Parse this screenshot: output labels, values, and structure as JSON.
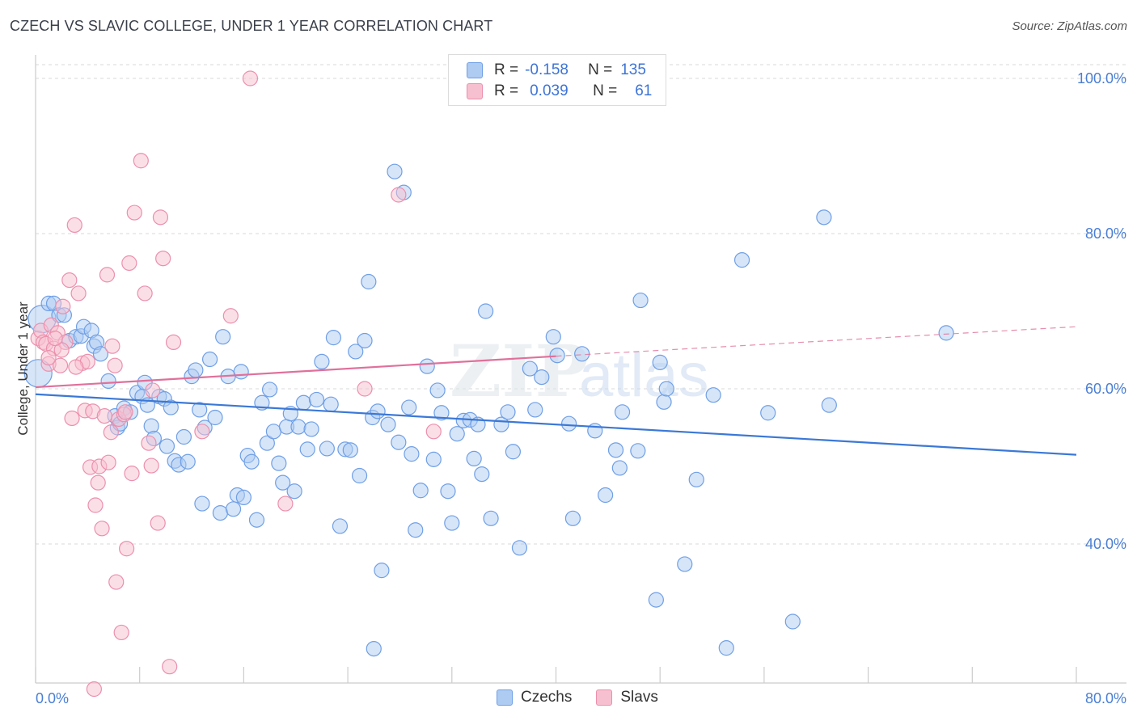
{
  "title": "CZECH VS SLAVIC COLLEGE, UNDER 1 YEAR CORRELATION CHART",
  "source": "Source: ZipAtlas.com",
  "watermark": "ZIPatlas",
  "legend_top": {
    "rows": [
      {
        "r_label": "R =",
        "r_value": "-0.158",
        "n_label": "N =",
        "n_value": "135",
        "color_fill": "#aecbf2",
        "color_stroke": "#6f9fe6"
      },
      {
        "r_label": "R =",
        "r_value": "0.039",
        "n_label": "N =",
        "n_value": "61",
        "color_fill": "#f7c0d0",
        "color_stroke": "#ec8fad"
      }
    ]
  },
  "legend_bottom": {
    "items": [
      {
        "label": "Czechs",
        "color_fill": "#aecbf2",
        "color_stroke": "#6f9fe6"
      },
      {
        "label": "Slavs",
        "color_fill": "#f7c0d0",
        "color_stroke": "#ec8fad"
      }
    ]
  },
  "chart_data": {
    "type": "scatter",
    "title": "CZECH VS SLAVIC COLLEGE, UNDER 1 YEAR CORRELATION CHART",
    "xlabel": "",
    "ylabel": "College, Under 1 year",
    "xlim": [
      0,
      80
    ],
    "ylim": [
      18,
      102
    ],
    "x_tick_labels": [
      "0.0%",
      "80.0%"
    ],
    "y_ticks": [
      40,
      60,
      80,
      100
    ],
    "y_tick_labels": [
      "40.0%",
      "60.0%",
      "80.0%",
      "100.0%"
    ],
    "grid": "horizontal dashed",
    "legend_position": "top-center",
    "series": [
      {
        "name": "Czechs",
        "color": "#6f9fe6",
        "fill": "#aecbf2",
        "trend": {
          "x": [
            0,
            80
          ],
          "y": [
            59.3,
            51.5
          ],
          "color": "#3b78d6"
        },
        "points": [
          [
            0.2,
            62.0
          ],
          [
            0.5,
            69.0
          ],
          [
            1.0,
            71.0
          ],
          [
            1.4,
            71.0
          ],
          [
            1.8,
            69.5
          ],
          [
            2.2,
            69.5
          ],
          [
            2.6,
            66.2
          ],
          [
            3.1,
            66.7
          ],
          [
            3.5,
            66.8
          ],
          [
            3.7,
            68.0
          ],
          [
            4.3,
            67.5
          ],
          [
            4.5,
            65.5
          ],
          [
            4.7,
            66.0
          ],
          [
            5.0,
            64.5
          ],
          [
            5.6,
            61.0
          ],
          [
            6.1,
            56.5
          ],
          [
            6.3,
            55.0
          ],
          [
            6.5,
            55.5
          ],
          [
            6.8,
            57.5
          ],
          [
            7.3,
            57.0
          ],
          [
            7.8,
            59.5
          ],
          [
            8.2,
            59.0
          ],
          [
            8.4,
            60.8
          ],
          [
            8.6,
            57.9
          ],
          [
            8.9,
            55.2
          ],
          [
            9.1,
            53.6
          ],
          [
            9.5,
            59.0
          ],
          [
            9.9,
            58.7
          ],
          [
            10.1,
            52.6
          ],
          [
            10.4,
            57.6
          ],
          [
            10.7,
            50.7
          ],
          [
            11.0,
            50.2
          ],
          [
            11.4,
            53.8
          ],
          [
            11.7,
            50.6
          ],
          [
            12.0,
            61.6
          ],
          [
            12.3,
            62.4
          ],
          [
            12.6,
            57.3
          ],
          [
            13.0,
            55.0
          ],
          [
            13.4,
            63.8
          ],
          [
            13.8,
            56.3
          ],
          [
            14.2,
            44.0
          ],
          [
            14.4,
            66.7
          ],
          [
            14.8,
            61.6
          ],
          [
            15.2,
            44.5
          ],
          [
            15.5,
            46.3
          ],
          [
            15.8,
            62.2
          ],
          [
            16.0,
            46.0
          ],
          [
            16.3,
            51.4
          ],
          [
            16.6,
            50.6
          ],
          [
            17.0,
            43.1
          ],
          [
            17.4,
            58.2
          ],
          [
            17.8,
            53.0
          ],
          [
            18.0,
            59.9
          ],
          [
            18.3,
            54.5
          ],
          [
            18.7,
            50.4
          ],
          [
            19.0,
            47.9
          ],
          [
            19.3,
            55.1
          ],
          [
            19.6,
            56.8
          ],
          [
            19.9,
            46.8
          ],
          [
            20.2,
            55.1
          ],
          [
            20.6,
            58.2
          ],
          [
            20.9,
            52.2
          ],
          [
            21.2,
            54.8
          ],
          [
            21.6,
            58.6
          ],
          [
            22.0,
            63.5
          ],
          [
            22.4,
            52.3
          ],
          [
            22.7,
            58.0
          ],
          [
            22.9,
            66.6
          ],
          [
            23.4,
            42.3
          ],
          [
            23.8,
            52.2
          ],
          [
            24.2,
            52.1
          ],
          [
            24.6,
            64.8
          ],
          [
            24.9,
            48.8
          ],
          [
            25.3,
            66.2
          ],
          [
            25.6,
            73.8
          ],
          [
            25.9,
            56.3
          ],
          [
            26.3,
            57.1
          ],
          [
            26.6,
            36.6
          ],
          [
            27.1,
            55.4
          ],
          [
            27.6,
            88.0
          ],
          [
            27.9,
            53.1
          ],
          [
            28.3,
            85.3
          ],
          [
            28.7,
            57.6
          ],
          [
            28.9,
            51.6
          ],
          [
            29.2,
            41.8
          ],
          [
            29.6,
            46.9
          ],
          [
            30.1,
            62.9
          ],
          [
            30.6,
            50.9
          ],
          [
            30.9,
            59.8
          ],
          [
            31.2,
            56.9
          ],
          [
            31.7,
            46.8
          ],
          [
            32.0,
            42.7
          ],
          [
            32.4,
            54.2
          ],
          [
            32.9,
            55.9
          ],
          [
            33.4,
            56.0
          ],
          [
            33.7,
            51.0
          ],
          [
            34.0,
            55.4
          ],
          [
            34.3,
            49.0
          ],
          [
            34.6,
            70.0
          ],
          [
            35.0,
            43.3
          ],
          [
            35.8,
            55.4
          ],
          [
            36.3,
            57.0
          ],
          [
            36.7,
            51.9
          ],
          [
            38.0,
            62.6
          ],
          [
            38.4,
            57.3
          ],
          [
            38.9,
            61.5
          ],
          [
            39.8,
            66.7
          ],
          [
            40.1,
            64.3
          ],
          [
            41.0,
            55.5
          ],
          [
            41.3,
            43.3
          ],
          [
            42.0,
            64.5
          ],
          [
            43.0,
            54.6
          ],
          [
            43.8,
            46.3
          ],
          [
            44.6,
            52.1
          ],
          [
            44.9,
            49.8
          ],
          [
            45.1,
            57.0
          ],
          [
            46.3,
            52.0
          ],
          [
            46.5,
            71.4
          ],
          [
            47.7,
            32.8
          ],
          [
            48.0,
            63.4
          ],
          [
            48.3,
            58.3
          ],
          [
            48.5,
            60.0
          ],
          [
            49.9,
            37.4
          ],
          [
            52.1,
            59.2
          ],
          [
            53.1,
            26.6
          ],
          [
            54.3,
            76.6
          ],
          [
            56.3,
            56.9
          ],
          [
            60.6,
            82.1
          ],
          [
            61.0,
            57.9
          ],
          [
            70.0,
            67.2
          ],
          [
            58.2,
            30.0
          ],
          [
            26.0,
            26.5
          ],
          [
            12.8,
            45.2
          ],
          [
            37.2,
            39.5
          ],
          [
            50.8,
            48.3
          ]
        ]
      },
      {
        "name": "Slavs",
        "color": "#ec8fad",
        "fill": "#f7c0d0",
        "trend": {
          "x": [
            0,
            40
          ],
          "y": [
            60.2,
            64.2
          ],
          "color": "#e0709a",
          "dashed_extension_to": [
            80,
            68.0
          ]
        },
        "points": [
          [
            0.2,
            66.5
          ],
          [
            0.4,
            67.5
          ],
          [
            0.6,
            66.0
          ],
          [
            0.8,
            65.8
          ],
          [
            1.0,
            63.2
          ],
          [
            1.2,
            68.2
          ],
          [
            1.4,
            65.2
          ],
          [
            1.7,
            67.2
          ],
          [
            1.9,
            63.0
          ],
          [
            2.1,
            70.6
          ],
          [
            2.3,
            66.0
          ],
          [
            2.6,
            74.0
          ],
          [
            2.8,
            56.2
          ],
          [
            3.0,
            81.1
          ],
          [
            3.3,
            72.3
          ],
          [
            3.6,
            63.3
          ],
          [
            3.8,
            57.2
          ],
          [
            4.0,
            63.5
          ],
          [
            4.2,
            49.9
          ],
          [
            4.4,
            57.1
          ],
          [
            4.6,
            45.0
          ],
          [
            4.8,
            47.9
          ],
          [
            4.9,
            50.0
          ],
          [
            5.1,
            42.0
          ],
          [
            5.3,
            56.5
          ],
          [
            5.5,
            74.7
          ],
          [
            5.6,
            50.5
          ],
          [
            5.8,
            54.4
          ],
          [
            5.9,
            65.5
          ],
          [
            6.1,
            63.0
          ],
          [
            6.2,
            35.1
          ],
          [
            6.4,
            56.1
          ],
          [
            6.6,
            28.6
          ],
          [
            6.8,
            56.7
          ],
          [
            7.0,
            39.4
          ],
          [
            7.2,
            76.2
          ],
          [
            7.4,
            49.1
          ],
          [
            7.6,
            82.7
          ],
          [
            8.1,
            89.4
          ],
          [
            8.4,
            72.3
          ],
          [
            8.7,
            53.0
          ],
          [
            8.9,
            50.1
          ],
          [
            9.0,
            59.8
          ],
          [
            9.4,
            42.7
          ],
          [
            9.6,
            82.1
          ],
          [
            9.8,
            76.8
          ],
          [
            10.3,
            24.2
          ],
          [
            10.6,
            66.0
          ],
          [
            12.8,
            54.5
          ],
          [
            15.0,
            69.4
          ],
          [
            16.5,
            100.0
          ],
          [
            19.2,
            45.2
          ],
          [
            25.3,
            60.0
          ],
          [
            27.9,
            85.0
          ],
          [
            30.6,
            54.5
          ],
          [
            2.0,
            65.0
          ],
          [
            1.0,
            64.0
          ],
          [
            4.5,
            21.3
          ],
          [
            3.1,
            62.8
          ],
          [
            1.5,
            66.5
          ],
          [
            6.9,
            57.0
          ]
        ]
      }
    ]
  }
}
